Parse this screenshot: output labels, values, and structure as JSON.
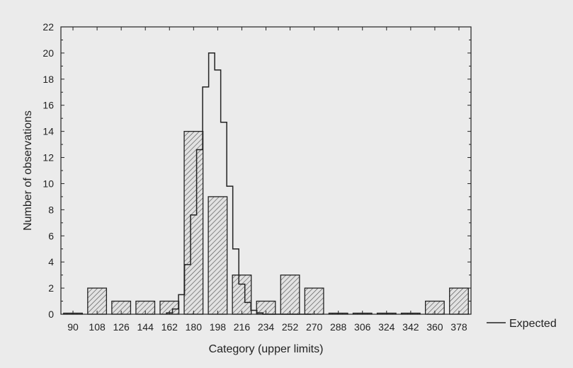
{
  "chart_data": {
    "type": "bar",
    "title": "",
    "xlabel": "Category (upper limits)",
    "ylabel": "Number of observations",
    "ylim": [
      0,
      22
    ],
    "yticks": [
      0,
      2,
      4,
      6,
      8,
      10,
      12,
      14,
      16,
      18,
      20,
      22
    ],
    "grid": false,
    "legend": {
      "placement": "right",
      "entries": [
        "Expected"
      ]
    },
    "categories": [
      "90",
      "108",
      "126",
      "144",
      "162",
      "180",
      "198",
      "216",
      "234",
      "252",
      "270",
      "288",
      "306",
      "324",
      "342",
      "360",
      "378"
    ],
    "series": [
      {
        "type": "bar",
        "values": [
          0,
          2,
          1,
          1,
          1,
          14,
          9,
          3,
          1,
          3,
          2,
          0,
          0,
          0,
          0,
          1,
          2
        ]
      },
      {
        "name": "Expected",
        "type": "step",
        "x": [
          162,
          166.5,
          171,
          175.5,
          180,
          184.5,
          189,
          193.5,
          198,
          202.5,
          207,
          211.5,
          216,
          220.5,
          225,
          229.5,
          234,
          238.5,
          243,
          247.5,
          252,
          256.5,
          261,
          265.5
        ],
        "values": [
          0.1,
          0.4,
          1.5,
          3.8,
          7.6,
          12.6,
          17.4,
          20,
          18.7,
          14.7,
          9.8,
          5,
          2.3,
          0.9,
          0.3,
          0.1,
          0,
          0,
          0,
          0,
          0,
          0,
          0,
          0
        ]
      }
    ]
  }
}
